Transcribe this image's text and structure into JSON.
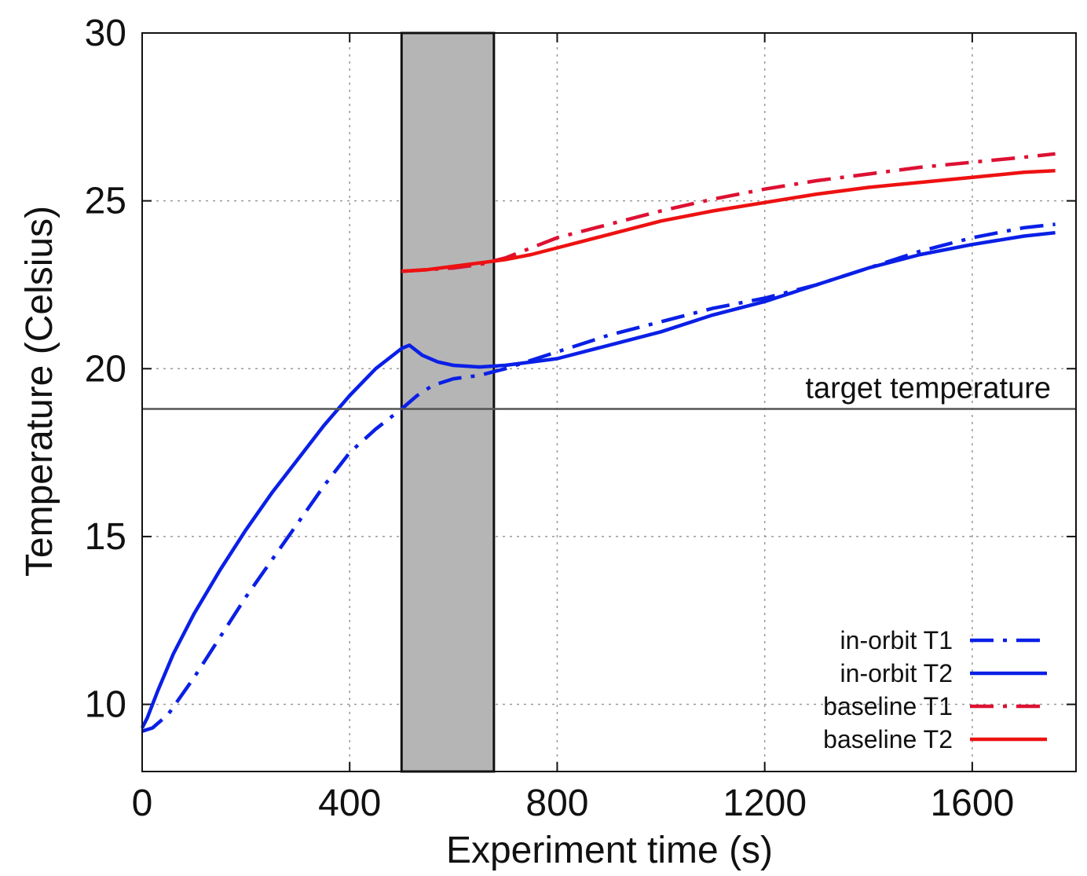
{
  "chart_data": {
    "type": "line",
    "xlabel": "Experiment time (s)",
    "ylabel": "Temperature (Celsius)",
    "xlim": [
      0,
      1800
    ],
    "ylim": [
      8,
      30
    ],
    "xticks": [
      0,
      400,
      800,
      1200,
      1600
    ],
    "yticks": [
      10,
      15,
      20,
      25,
      30
    ],
    "grid": true,
    "legend_position": "bottom-right",
    "shaded_region": [
      500,
      678
    ],
    "reference_line": {
      "y": 18.8,
      "label": "target temperature"
    },
    "colors": {
      "blue": "#0a1fe6",
      "red": "#ee1111",
      "darkred": "#dd1133"
    },
    "series": [
      {
        "name": "in-orbit T1",
        "color": "#0a1fe6",
        "dash": "dashdot",
        "x": [
          0,
          20,
          50,
          100,
          150,
          200,
          250,
          300,
          350,
          400,
          450,
          500,
          530,
          560,
          600,
          650,
          700,
          800,
          900,
          1000,
          1100,
          1200,
          1300,
          1400,
          1500,
          1600,
          1700,
          1760
        ],
        "y": [
          9.2,
          9.3,
          9.7,
          10.8,
          12.0,
          13.2,
          14.3,
          15.4,
          16.5,
          17.5,
          18.2,
          18.8,
          19.2,
          19.5,
          19.7,
          19.8,
          20.0,
          20.5,
          21.0,
          21.4,
          21.8,
          22.1,
          22.5,
          23.0,
          23.5,
          23.9,
          24.2,
          24.3
        ]
      },
      {
        "name": "in-orbit T2",
        "color": "#0a1fe6",
        "dash": "solid",
        "x": [
          0,
          10,
          30,
          60,
          100,
          150,
          200,
          250,
          300,
          350,
          400,
          450,
          500,
          515,
          540,
          570,
          600,
          650,
          700,
          800,
          900,
          1000,
          1100,
          1200,
          1300,
          1400,
          1500,
          1600,
          1700,
          1760
        ],
        "y": [
          9.3,
          9.6,
          10.4,
          11.5,
          12.7,
          14.0,
          15.2,
          16.3,
          17.3,
          18.3,
          19.2,
          20.0,
          20.6,
          20.7,
          20.4,
          20.2,
          20.1,
          20.05,
          20.1,
          20.3,
          20.7,
          21.1,
          21.6,
          22.0,
          22.5,
          23.0,
          23.4,
          23.7,
          23.95,
          24.05
        ]
      },
      {
        "name": "baseline T1",
        "color": "#dd1133",
        "dash": "dashdot",
        "x": [
          500,
          550,
          600,
          650,
          700,
          750,
          800,
          900,
          1000,
          1100,
          1200,
          1300,
          1400,
          1500,
          1600,
          1700,
          1760
        ],
        "y": [
          22.9,
          22.95,
          23.0,
          23.1,
          23.3,
          23.6,
          23.9,
          24.3,
          24.7,
          25.05,
          25.35,
          25.6,
          25.8,
          26.0,
          26.15,
          26.3,
          26.4
        ]
      },
      {
        "name": "baseline T2",
        "color": "#ee1111",
        "dash": "solid",
        "x": [
          500,
          550,
          600,
          650,
          700,
          750,
          800,
          900,
          1000,
          1100,
          1200,
          1300,
          1400,
          1500,
          1600,
          1700,
          1760
        ],
        "y": [
          22.9,
          22.95,
          23.05,
          23.15,
          23.25,
          23.4,
          23.6,
          24.0,
          24.4,
          24.7,
          24.95,
          25.2,
          25.4,
          25.55,
          25.7,
          25.85,
          25.9
        ]
      }
    ]
  }
}
